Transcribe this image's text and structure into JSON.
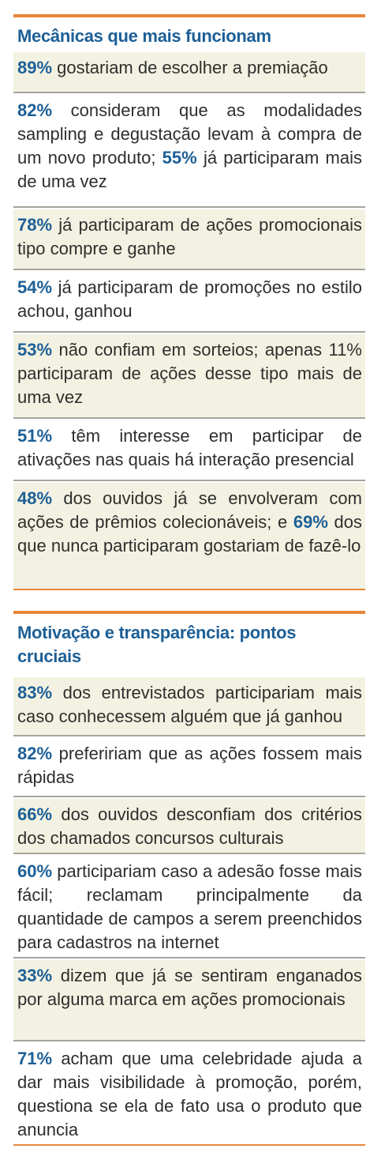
{
  "sections": [
    {
      "title": "Mecânicas que mais funcionam",
      "items": [
        {
          "p1": "89%",
          "t1": " gostariam de escolher a premiação",
          "p2": "",
          "t2": ""
        },
        {
          "p1": "82%",
          "t1": " consideram que as modalidades sampling e degustação levam à compra de um novo produto; ",
          "p2": "55%",
          "t2": " já participaram mais de uma vez"
        },
        {
          "p1": "78%",
          "t1": " já participaram de ações promocionais tipo compre e ganhe",
          "p2": "",
          "t2": ""
        },
        {
          "p1": "54%",
          "t1": " já participaram de promoções no estilo achou, ganhou",
          "p2": "",
          "t2": ""
        },
        {
          "p1": "53%",
          "t1": " não confiam em sorteios; apenas 11% participaram de ações desse tipo mais de uma vez",
          "p2": "",
          "t2": ""
        },
        {
          "p1": "51%",
          "t1": " têm interesse em participar de ativações nas quais há interação presencial",
          "p2": "",
          "t2": ""
        },
        {
          "p1": "48%",
          "t1": " dos ouvidos já se envolveram com ações de prêmios colecionáveis; e ",
          "p2": "69%",
          "t2": " dos que nunca participaram gostariam de fazê-lo"
        }
      ]
    },
    {
      "title": "Motivação e transparência: pontos cruciais",
      "items": [
        {
          "p1": "83%",
          "t1": " dos entrevistados participariam mais caso conhecessem alguém que já ganhou",
          "p2": "",
          "t2": ""
        },
        {
          "p1": "82%",
          "t1": " prefeririam que as ações fossem mais rápidas",
          "p2": "",
          "t2": ""
        },
        {
          "p1": "66%",
          "t1": " dos ouvidos desconfiam dos critérios dos chamados concursos culturais",
          "p2": "",
          "t2": ""
        },
        {
          "p1": "60%",
          "t1": " participariam caso a adesão fosse mais fácil; reclamam principalmente da quantidade de campos a serem preenchidos para cadastros na internet",
          "p2": "",
          "t2": ""
        },
        {
          "p1": "33%",
          "t1": " dizem que já se sentiram enganados por alguma marca em ações promocionais",
          "p2": "",
          "t2": ""
        },
        {
          "p1": "71%",
          "t1": " acham que uma celebridade ajuda a dar mais visibilidade à promoção, porém, questiona se ela de fato usa o produto que anuncia",
          "p2": "",
          "t2": ""
        }
      ]
    }
  ],
  "colors": {
    "accent": "#1d5f96",
    "rule": "#e8863a",
    "shade": "#f3f2e2",
    "text": "#2e2e2e"
  }
}
